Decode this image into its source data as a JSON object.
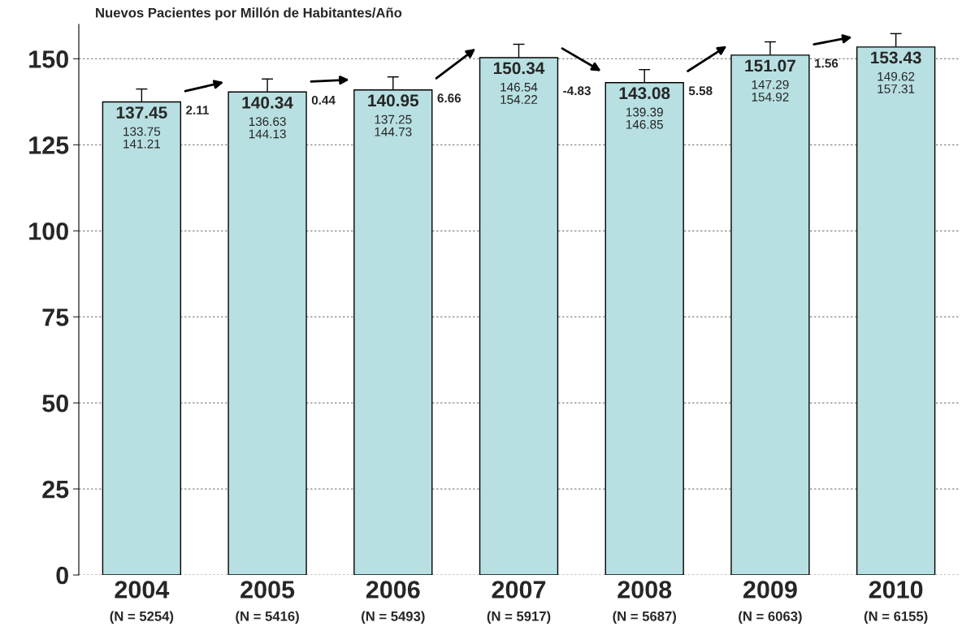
{
  "chart_data": {
    "type": "bar",
    "title": "Nuevos Pacientes por Millón de Habitantes/Año",
    "categories": [
      "2004\n(N = 5254)",
      "2005\n(N = 5416)",
      "2006\n(N = 5493)",
      "2007\n(N = 5917)",
      "2008\n(N = 5687)",
      "2009\n(N = 6063)",
      "2010\n(N = 6155)"
    ],
    "values": [
      137.45,
      140.34,
      140.95,
      150.34,
      143.08,
      151.07,
      153.43
    ],
    "errors": [
      [
        133.75,
        141.21
      ],
      [
        136.63,
        144.13
      ],
      [
        137.25,
        144.73
      ],
      [
        146.54,
        154.22
      ],
      [
        139.39,
        146.85
      ],
      [
        147.29,
        154.92
      ],
      [
        149.62,
        157.31
      ]
    ],
    "color": "#b8e0e2",
    "value_labels": [
      "137.45\n133.75\n141.21",
      "140.34\n136.63\n144.13",
      "140.95\n137.25\n144.73",
      "150.34\n146.54\n154.22",
      "143.08\n139.39\n146.85",
      "151.07\n147.29\n154.92",
      "153.43\n149.62\n157.31"
    ],
    "annotations": [
      "2.11",
      "0.44",
      "6.66",
      "-4.83",
      "5.58",
      "1.56"
    ],
    "ylim": [
      0,
      160
    ],
    "yticks": [
      0,
      25,
      50,
      75,
      100,
      125,
      150
    ],
    "grid": "y"
  }
}
